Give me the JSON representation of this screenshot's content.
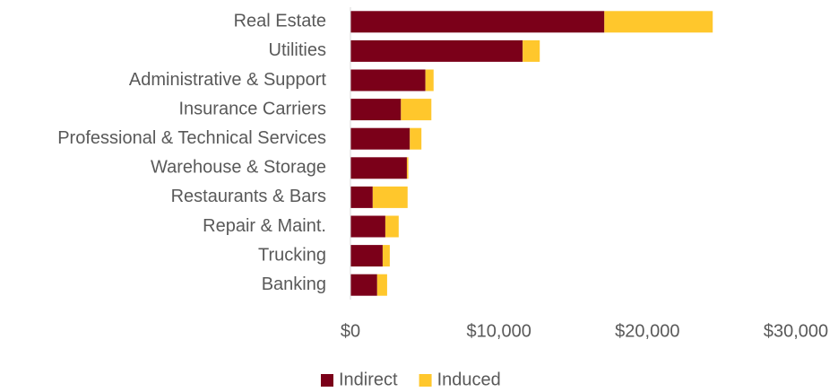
{
  "chart_data": {
    "type": "bar",
    "orientation": "horizontal",
    "stacked": true,
    "categories": [
      "Real Estate",
      "Utilities",
      "Administrative & Support",
      "Insurance Carriers",
      "Professional & Technical Services",
      "Warehouse & Storage",
      "Restaurants & Bars",
      "Repair & Maint.",
      "Trucking",
      "Banking"
    ],
    "series": [
      {
        "name": "Indirect",
        "color": "#7b0019",
        "values": [
          17100,
          11600,
          5050,
          3400,
          4000,
          3800,
          1500,
          2350,
          2170,
          1800
        ]
      },
      {
        "name": "Induced",
        "color": "#ffc72c",
        "values": [
          7300,
          1150,
          550,
          2050,
          780,
          100,
          2350,
          900,
          480,
          670
        ]
      }
    ],
    "xlim": [
      0,
      30000
    ],
    "xticks": [
      {
        "value": 0,
        "label": "$0"
      },
      {
        "value": 10000,
        "label": "$10,000"
      },
      {
        "value": 20000,
        "label": "$20,000"
      },
      {
        "value": 30000,
        "label": "$30,000"
      }
    ],
    "grid": false,
    "legend": "bottom"
  }
}
